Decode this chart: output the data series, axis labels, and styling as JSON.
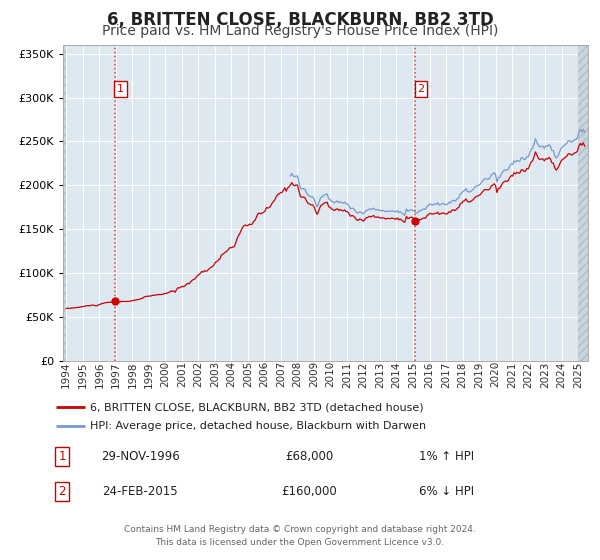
{
  "title": "6, BRITTEN CLOSE, BLACKBURN, BB2 3TD",
  "subtitle": "Price paid vs. HM Land Registry's House Price Index (HPI)",
  "xlim": [
    1993.8,
    2025.6
  ],
  "ylim": [
    0,
    360000
  ],
  "yticks": [
    0,
    50000,
    100000,
    150000,
    200000,
    250000,
    300000,
    350000
  ],
  "xtick_years": [
    1994,
    1995,
    1996,
    1997,
    1998,
    1999,
    2000,
    2001,
    2002,
    2003,
    2004,
    2005,
    2006,
    2007,
    2008,
    2009,
    2010,
    2011,
    2012,
    2013,
    2014,
    2015,
    2016,
    2017,
    2018,
    2019,
    2020,
    2021,
    2022,
    2023,
    2024,
    2025
  ],
  "hpi_line_color": "#7799cc",
  "price_line_color": "#cc0000",
  "sale1_date": 1996.92,
  "sale1_price": 68000,
  "sale2_date": 2015.12,
  "sale2_price": 160000,
  "vline_color": "#cc3333",
  "marker_color": "#cc0000",
  "bg_color": "#dde8f0",
  "hatch_bg_color": "#c8d4de",
  "legend_label1": "6, BRITTEN CLOSE, BLACKBURN, BB2 3TD (detached house)",
  "legend_label2": "HPI: Average price, detached house, Blackburn with Darwen",
  "table_row1": [
    "1",
    "29-NOV-1996",
    "£68,000",
    "1% ↑ HPI"
  ],
  "table_row2": [
    "2",
    "24-FEB-2015",
    "£160,000",
    "6% ↓ HPI"
  ],
  "footnote1": "Contains HM Land Registry data © Crown copyright and database right 2024.",
  "footnote2": "This data is licensed under the Open Government Licence v3.0.",
  "title_fontsize": 12,
  "subtitle_fontsize": 10,
  "hpi_start_year": 2007.5
}
